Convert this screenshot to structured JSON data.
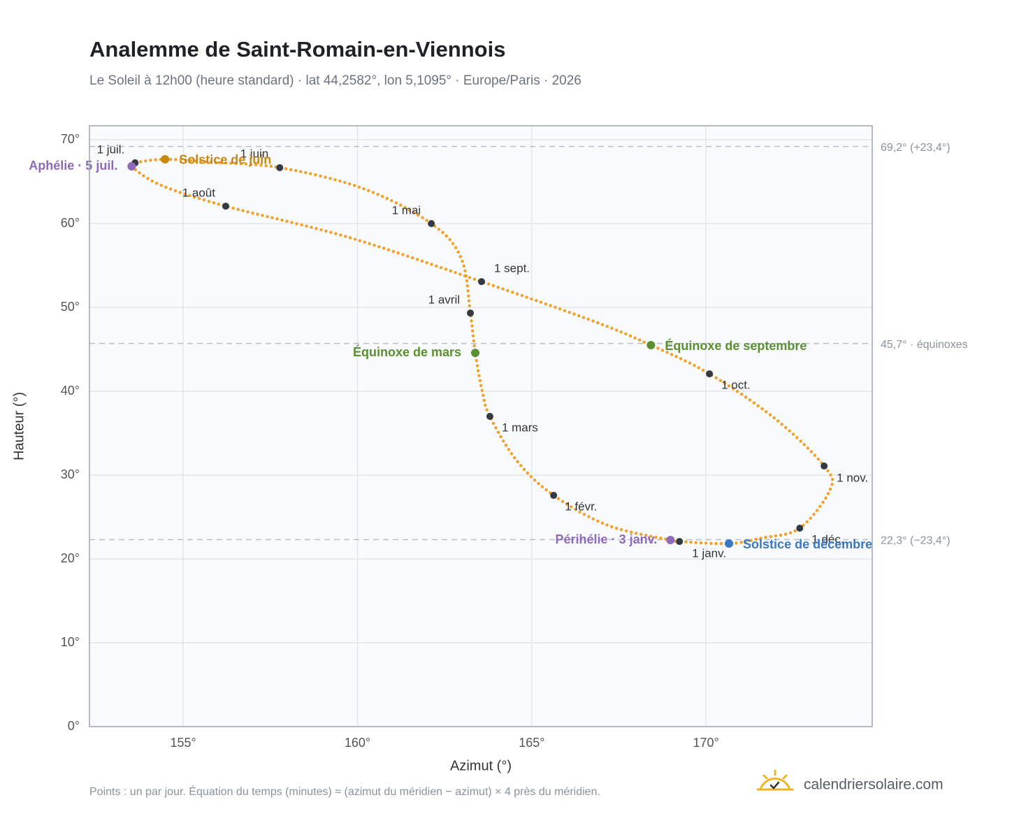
{
  "chart_data": {
    "type": "analemma",
    "title": "Analemme de Saint-Romain-en-Viennois",
    "subtitle": "Le Soleil à 12h00 (heure standard) · lat 44,2582°, lon 5,1095° · Europe/Paris · 2026",
    "x_label": "Azimut (°)",
    "y_label": "Hauteur (°)",
    "xlim": [
      152.31,
      174.77
    ],
    "ylim": [
      0,
      71.67
    ],
    "xticks": [
      {
        "value": 155,
        "label": "155°"
      },
      {
        "value": 160,
        "label": "160°"
      },
      {
        "value": 165,
        "label": "165°"
      },
      {
        "value": 170,
        "label": "170°"
      }
    ],
    "yticks": [
      {
        "value": 0,
        "label": "0°"
      },
      {
        "value": 10,
        "label": "10°"
      },
      {
        "value": 20,
        "label": "20°"
      },
      {
        "value": 30,
        "label": "30°"
      },
      {
        "value": 40,
        "label": "40°"
      },
      {
        "value": 50,
        "label": "50°"
      },
      {
        "value": 60,
        "label": "60°"
      },
      {
        "value": 70,
        "label": "70°"
      }
    ],
    "grid": true,
    "curve": {
      "color": "#f0a22e",
      "x": [
        169.24,
        168.98,
        167.19,
        165.63,
        164.58,
        163.8,
        163.58,
        163.38,
        163.24,
        162.98,
        162.12,
        160.17,
        157.77,
        155.76,
        154.48,
        153.62,
        153.52,
        154.36,
        156.22,
        159.77,
        163.56,
        166.79,
        168.42,
        170.1,
        172.0,
        173.39,
        173.57,
        172.69,
        171.6,
        170.66
      ],
      "y": [
        22.08,
        22.25,
        24.0,
        27.58,
        31.67,
        37.0,
        40.0,
        44.58,
        49.33,
        55.83,
        60.0,
        64.17,
        66.67,
        67.33,
        67.67,
        67.25,
        66.83,
        64.58,
        62.08,
        58.33,
        53.08,
        48.33,
        45.5,
        42.08,
        36.67,
        31.08,
        28.33,
        23.67,
        22.5,
        21.83
      ]
    },
    "reference_lines": [
      {
        "value": 69.2,
        "label": "69,2° (+23,4°)"
      },
      {
        "value": 45.7,
        "label": "45,7° · équinoxes"
      },
      {
        "value": 22.3,
        "label": "22,3° (−23,4°)"
      }
    ],
    "months": {
      "color": "#333a44",
      "labels": [
        "1 janv.",
        "1 févr.",
        "1 mars",
        "1 avril",
        "1 mai",
        "1 juin",
        "1 juil.",
        "1 août",
        "1 sept.",
        "1 oct.",
        "1 nov.",
        "1 déc."
      ],
      "x": [
        169.24,
        165.63,
        163.8,
        163.24,
        162.12,
        157.77,
        153.62,
        156.22,
        163.56,
        170.1,
        173.39,
        172.69
      ],
      "y": [
        22.08,
        27.58,
        37.0,
        49.33,
        60.0,
        66.67,
        67.25,
        62.08,
        53.08,
        42.08,
        31.08,
        23.67
      ]
    },
    "events": [
      {
        "label": "Solstice de juin",
        "x": 154.48,
        "y": 67.67,
        "color": "#c8870e"
      },
      {
        "label": "Aphélie · 5 juil.",
        "x": 153.52,
        "y": 66.83,
        "color": "#8e6bb8"
      },
      {
        "label": "Équinoxe de mars",
        "x": 163.38,
        "y": 44.58,
        "color": "#5a8f32"
      },
      {
        "label": "Équinoxe de septembre",
        "x": 168.42,
        "y": 45.5,
        "color": "#5a8f32"
      },
      {
        "label": "Périhélie · 3 janv.",
        "x": 168.98,
        "y": 22.25,
        "color": "#8e6bb8"
      },
      {
        "label": "Solstice de décembre",
        "x": 170.66,
        "y": 21.83,
        "color": "#3a78c2"
      }
    ],
    "note": "Points : un par jour. Équation du temps (minutes) ≈ (azimut du méridien − azimut) × 4 près du méridien.",
    "brand": "calendriersolaire.com"
  }
}
